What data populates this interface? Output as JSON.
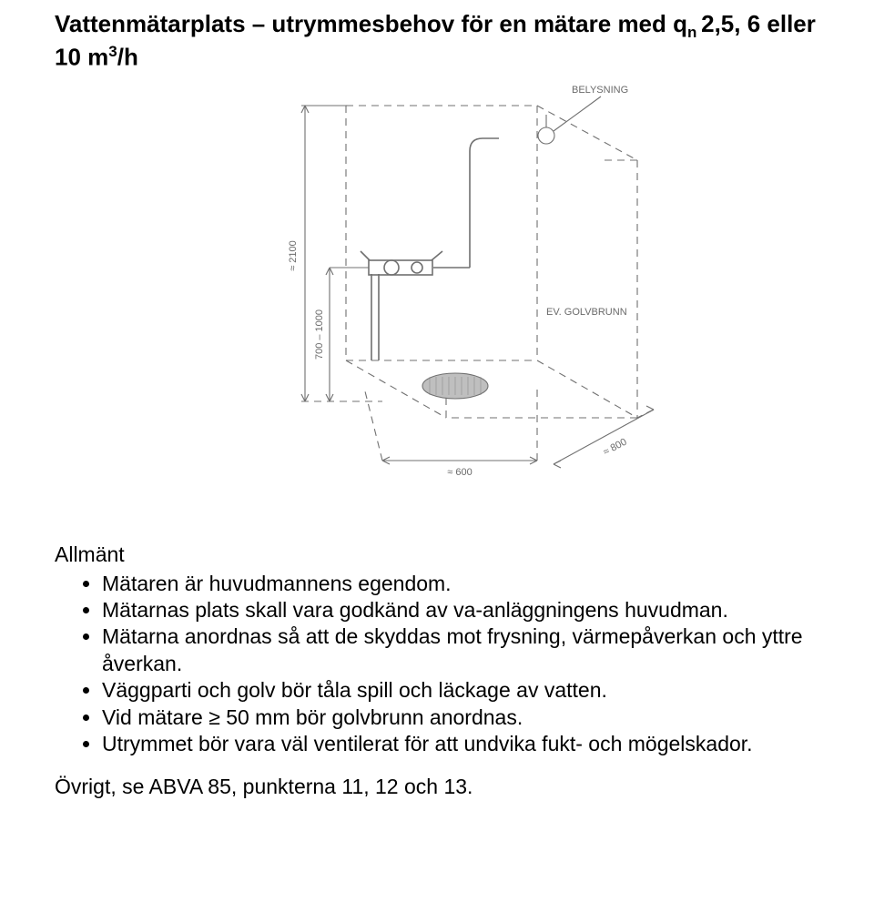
{
  "title": {
    "line1_pre": "Vattenmätarplats – utrymmesbehov för en mätare med q",
    "line1_sub": "n ",
    "line1_post": "2,5, 6 eller",
    "line2_pre": "10 m",
    "line2_sup": "3",
    "line2_post": "/h"
  },
  "diagram": {
    "labels": {
      "belysning": "BELYSNING",
      "golvbrunn": "EV. GOLVBRUNN",
      "h_total": "≈ 2100",
      "h_lower": "700 – 1000",
      "width": "≈ 600",
      "depth": "≈ 800"
    },
    "colors": {
      "stroke": "#707070",
      "text": "#6a6a6a",
      "fill_bg": "#ffffff",
      "fill_drain": "#bfbfbf"
    },
    "line_widths": {
      "dash": 1.1,
      "solid": 1.6
    },
    "dash_pattern": "8 6",
    "label_fontsize": 11
  },
  "general": {
    "heading": "Allmänt",
    "items": [
      "Mätaren är huvudmannens egendom.",
      "Mätarnas plats skall vara godkänd av va-anläggningens huvudman.",
      "Mätarna anordnas så att de skyddas mot frysning, värmepåverkan och yttre åverkan.",
      "Väggparti och golv bör tåla spill och läckage av vatten.",
      "Vid mätare ≥ 50 mm bör golvbrunn anordnas.",
      "Utrymmet bör vara väl ventilerat för att undvika fukt- och mögelskador."
    ]
  },
  "footer": "Övrigt, se ABVA 85, punkterna 11, 12 och 13."
}
